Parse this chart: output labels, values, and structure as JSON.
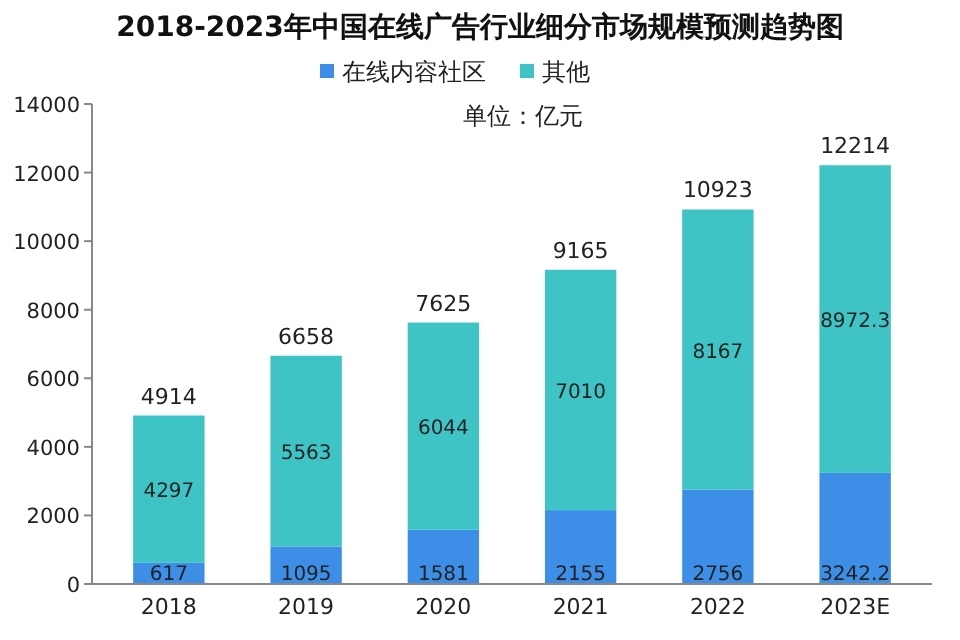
{
  "chart_data": {
    "type": "bar",
    "title": "2018-2023年中国在线广告行业细分市场规模预测趋势图",
    "annotations": [
      "单位：亿元"
    ],
    "categories": [
      "2018",
      "2019",
      "2020",
      "2021",
      "2022",
      "2023E"
    ],
    "stacked": true,
    "series": [
      {
        "name": "在线内容社区",
        "color": "#3d8ee6",
        "values": [
          617,
          1095,
          1581,
          2155,
          2756,
          3242.2
        ]
      },
      {
        "name": "其他",
        "color": "#3ec4c4",
        "values": [
          4297,
          5563,
          6044,
          7010,
          8167,
          8972.3
        ]
      }
    ],
    "totals": [
      "4914",
      "6658",
      "7625",
      "9165",
      "10923",
      "12214"
    ],
    "data_labels": true,
    "ylim": [
      0,
      14000
    ],
    "yticks": [
      0,
      2000,
      4000,
      6000,
      8000,
      10000,
      12000,
      14000
    ],
    "grid": false,
    "legend": "top"
  }
}
